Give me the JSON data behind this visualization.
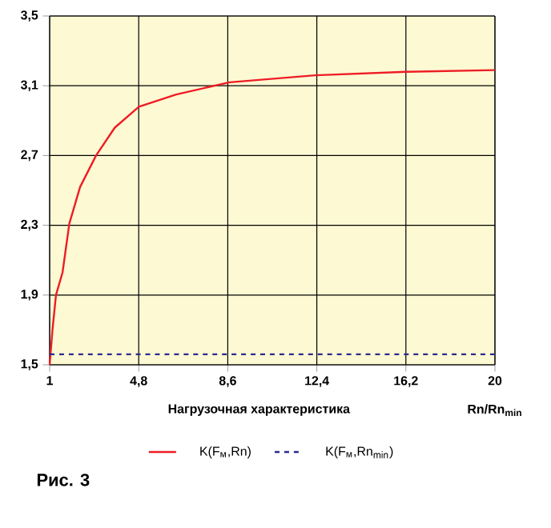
{
  "chart_data": {
    "type": "line",
    "xlabel": "Rn/Rn$_{min}$",
    "annotations": [
      "Нагрузочная характеристика",
      "Рис. 3"
    ],
    "xlim": [
      1,
      20
    ],
    "ylim": [
      1.5,
      3.5
    ],
    "xticks": [
      1,
      {
        "value": 4.8,
        "label": "4,8"
      },
      {
        "value": 8.6,
        "label": "8,6"
      },
      {
        "value": 12.4,
        "label": "12,4"
      },
      {
        "value": 16.2,
        "label": "16,2"
      },
      20
    ],
    "yticks": [
      {
        "value": 1.5,
        "label": "1,5"
      },
      {
        "value": 1.9,
        "label": "1,9"
      },
      {
        "value": 2.3,
        "label": "2,3"
      },
      {
        "value": 2.7,
        "label": "2,7"
      },
      {
        "value": 3.1,
        "label": "3,1"
      },
      {
        "value": 3.5,
        "label": "3,5"
      }
    ],
    "grid": true,
    "legend": "bottom",
    "marker": "none",
    "series": [
      {
        "name": "K(F$_{м}$,Rn)",
        "color": "#ee1c25",
        "line_style": "solid",
        "x": [
          1,
          1.12,
          1.27,
          1.55,
          1.84,
          2.3,
          2.98,
          3.78,
          4.81,
          6.4,
          8.68,
          12.33,
          16.2,
          20
        ],
        "values": [
          1.5,
          1.7,
          1.9,
          2.03,
          2.31,
          2.52,
          2.7,
          2.86,
          2.98,
          3.05,
          3.12,
          3.16,
          3.18,
          3.19
        ]
      },
      {
        "name": "K(F$_{м}$,Rn$_{min}$)",
        "color": "#2b2b8f",
        "line_style": "dashed",
        "x": [
          1,
          20
        ],
        "values": [
          1.56,
          1.56
        ]
      }
    ]
  }
}
